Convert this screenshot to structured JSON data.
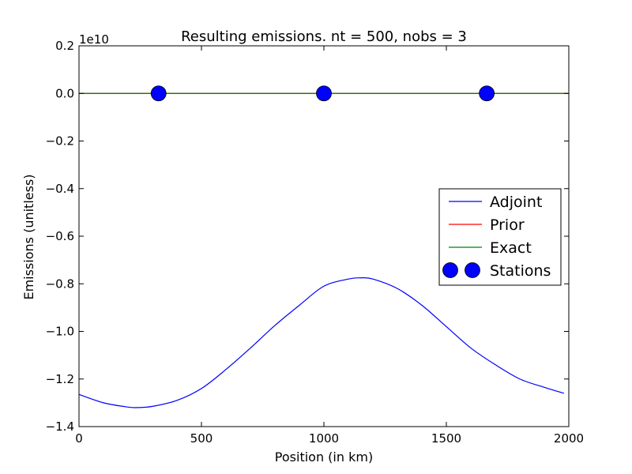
{
  "chart_data": {
    "type": "line",
    "title": "Resulting emissions. nt = 500, nobs = 3",
    "xlabel": "Position (in km)",
    "ylabel": "Emissions (unitless)",
    "y_offset_label": "1e10",
    "y_scale_factor": 10000000000,
    "xlim": [
      0,
      2000
    ],
    "ylim": [
      -1.4,
      0.2
    ],
    "xticks": [
      0,
      500,
      1000,
      1500,
      2000
    ],
    "xtick_labels": [
      "0",
      "500",
      "1000",
      "1500",
      "2000"
    ],
    "yticks": [
      0.2,
      0.0,
      -0.2,
      -0.4,
      -0.6,
      -0.8,
      -1.0,
      -1.2,
      -1.4
    ],
    "ytick_labels": [
      "0.2",
      "0.0",
      "−0.2",
      "−0.4",
      "−0.6",
      "−0.8",
      "−1.0",
      "−1.2",
      "−1.4"
    ],
    "grid": false,
    "legend_position": "center-right",
    "series": [
      {
        "name": "Adjoint",
        "color": "#0000ff",
        "style": "line",
        "x": [
          0,
          100,
          200,
          240,
          300,
          400,
          500,
          600,
          700,
          800,
          900,
          1000,
          1100,
          1150,
          1200,
          1300,
          1400,
          1500,
          1600,
          1700,
          1800,
          1900,
          1980
        ],
        "y": [
          -1.265,
          -1.3,
          -1.318,
          -1.32,
          -1.315,
          -1.29,
          -1.24,
          -1.16,
          -1.07,
          -0.975,
          -0.89,
          -0.81,
          -0.78,
          -0.775,
          -0.78,
          -0.82,
          -0.89,
          -0.98,
          -1.07,
          -1.14,
          -1.2,
          -1.235,
          -1.26
        ]
      },
      {
        "name": "Prior",
        "color": "#ff0000",
        "style": "line",
        "x": [
          0,
          2000
        ],
        "y": [
          0.0,
          0.0
        ]
      },
      {
        "name": "Exact",
        "color": "#008000",
        "style": "line",
        "x": [
          0,
          2000
        ],
        "y": [
          0.0,
          0.0
        ]
      },
      {
        "name": "Stations",
        "color": "#0000ff",
        "style": "marker",
        "x": [
          325,
          1000,
          1665
        ],
        "y": [
          0.0,
          0.0,
          0.0
        ]
      }
    ]
  }
}
